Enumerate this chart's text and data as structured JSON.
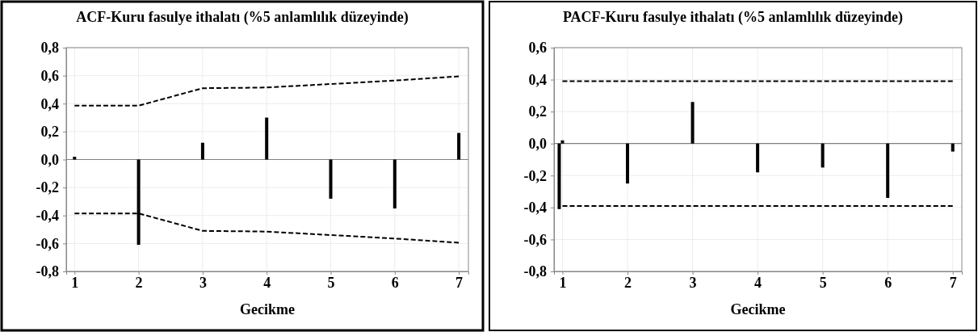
{
  "chart_data": [
    {
      "type": "bar",
      "title": "ACF-Kuru fasulye ithalatı (%5 anlamlılık düzeyinde)",
      "xlabel": "Gecikme",
      "xlim": [
        0.87,
        7.15
      ],
      "xticks": [
        1,
        2,
        3,
        4,
        5,
        6,
        7
      ],
      "ylim": [
        -0.8,
        0.8
      ],
      "yticks": [
        {
          "value": -0.8,
          "label": "-0,8"
        },
        {
          "value": -0.6,
          "label": "-0,6"
        },
        {
          "value": -0.4,
          "label": "-0,4"
        },
        {
          "value": -0.2,
          "label": "-0,2"
        },
        {
          "value": 0,
          "label": "0,0"
        },
        {
          "value": 0.2,
          "label": "0,2"
        },
        {
          "value": 0.4,
          "label": "0,4"
        },
        {
          "value": 0.6,
          "label": "0,6"
        },
        {
          "value": 0.8,
          "label": "0,8"
        }
      ],
      "grid": true,
      "ref_lines": [
        {
          "axis": "y",
          "value": 0,
          "color": "#808080"
        }
      ],
      "series": [
        {
          "color": "#000000",
          "x": [
            1,
            2,
            3,
            4,
            5,
            6,
            7
          ],
          "values": [
            0.02,
            -0.61,
            0.12,
            0.3,
            -0.28,
            -0.35,
            0.19
          ]
        },
        {
          "type": "line",
          "color": "#000000",
          "line_style": "dashed",
          "x": [
            1,
            2,
            3,
            4,
            5,
            6,
            7
          ],
          "values": [
            0.385,
            0.385,
            0.51,
            0.515,
            0.54,
            0.565,
            0.595
          ]
        },
        {
          "type": "line",
          "color": "#000000",
          "line_style": "dashed",
          "x": [
            1,
            2,
            3,
            4,
            5,
            6,
            7
          ],
          "values": [
            -0.385,
            -0.385,
            -0.51,
            -0.515,
            -0.54,
            -0.565,
            -0.595
          ]
        }
      ]
    },
    {
      "type": "bar",
      "title": "PACF-Kuru fasulye ithalatı (%5 anlamlılık düzeyinde)",
      "xlabel": "Gecikme",
      "xlim": [
        0.87,
        7.14
      ],
      "xticks": [
        1,
        2,
        3,
        4,
        5,
        6,
        7
      ],
      "ylim": [
        -0.8,
        0.6
      ],
      "yticks": [
        {
          "value": -0.8,
          "label": "-0,8"
        },
        {
          "value": -0.6,
          "label": "-0,6"
        },
        {
          "value": -0.4,
          "label": "-0,4"
        },
        {
          "value": -0.2,
          "label": "-0,2"
        },
        {
          "value": 0,
          "label": "0,0"
        },
        {
          "value": 0.2,
          "label": "0,2"
        },
        {
          "value": 0.4,
          "label": "0,4"
        },
        {
          "value": 0.6,
          "label": "0,6"
        }
      ],
      "grid": true,
      "ref_lines": [
        {
          "axis": "y",
          "value": 0,
          "color": "#808080"
        }
      ],
      "series": [
        {
          "color": "#000000",
          "x": [
            0.95,
            1,
            2,
            3,
            4,
            5,
            6,
            7
          ],
          "values": [
            -0.41,
            0.02,
            -0.25,
            0.26,
            -0.18,
            -0.15,
            -0.34,
            -0.05
          ]
        },
        {
          "type": "line",
          "color": "#000000",
          "line_style": "dashed",
          "x": [
            1,
            7
          ],
          "values": [
            0.39,
            0.39
          ]
        },
        {
          "type": "line",
          "color": "#000000",
          "line_style": "dashed",
          "x": [
            1,
            7
          ],
          "values": [
            -0.39,
            -0.39
          ]
        }
      ]
    }
  ]
}
